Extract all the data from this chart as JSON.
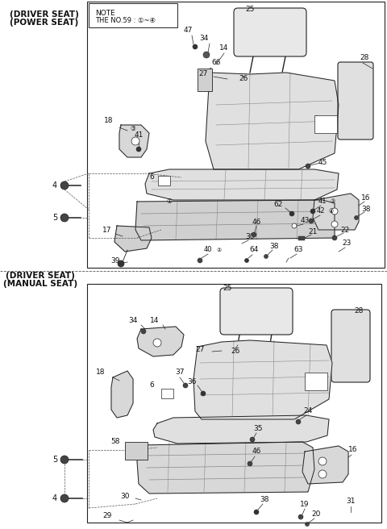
{
  "bg_color": "#ffffff",
  "fig_width": 4.8,
  "fig_height": 6.56,
  "dpi": 100,
  "top_label1": "(DRIVER SEAT)",
  "top_label2": "(POWER SEAT)",
  "bot_label1": "(DRIVER SEAT)",
  "bot_label2": "(MANUAL SEAT)",
  "note_line1": "NOTE",
  "note_line2": "THE NO.59 : ①~④",
  "lc": "#222222",
  "fc_seat": "#e8e8e8",
  "fc_dark": "#cccccc",
  "fc_white": "#ffffff"
}
